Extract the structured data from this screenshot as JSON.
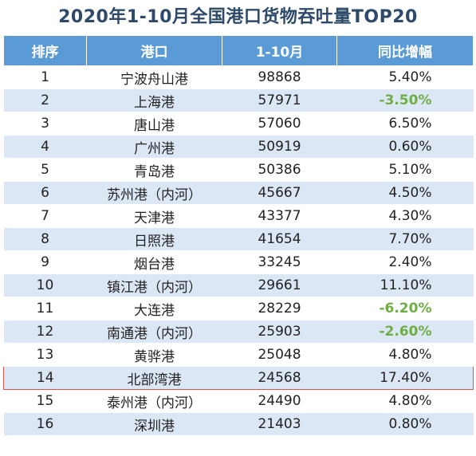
{
  "title": "2020年1-10月全国港口货物吞吐量TOP20",
  "columns": [
    "排序",
    "港口",
    "1-10月",
    "同比增幅"
  ],
  "rows": [
    {
      "rank": "1",
      "port": "宁波舟山港",
      "volume": "98868",
      "growth": "5.40%"
    },
    {
      "rank": "2",
      "port": "上海港",
      "volume": "57971",
      "growth": "-3.50%"
    },
    {
      "rank": "3",
      "port": "唐山港",
      "volume": "57060",
      "growth": "6.50%"
    },
    {
      "rank": "4",
      "port": "广州港",
      "volume": "50919",
      "growth": "0.60%"
    },
    {
      "rank": "5",
      "port": "青岛港",
      "volume": "50386",
      "growth": "5.10%"
    },
    {
      "rank": "6",
      "port": "苏州港（内河）",
      "volume": "45667",
      "growth": "4.50%"
    },
    {
      "rank": "7",
      "port": "天津港",
      "volume": "43377",
      "growth": "4.30%"
    },
    {
      "rank": "8",
      "port": "日照港",
      "volume": "41654",
      "growth": "7.70%"
    },
    {
      "rank": "9",
      "port": "烟台港",
      "volume": "33245",
      "growth": "2.40%"
    },
    {
      "rank": "10",
      "port": "镇江港（内河）",
      "volume": "29661",
      "growth": "11.10%"
    },
    {
      "rank": "11",
      "port": "大连港",
      "volume": "28229",
      "growth": "-6.20%"
    },
    {
      "rank": "12",
      "port": "南通港（内河）",
      "volume": "25903",
      "growth": "-2.60%"
    },
    {
      "rank": "13",
      "port": "黄骅港",
      "volume": "25048",
      "growth": "4.80%"
    },
    {
      "rank": "14",
      "port": "北部湾港",
      "volume": "24568",
      "growth": "17.40%"
    },
    {
      "rank": "15",
      "port": "泰州港（内河）",
      "volume": "24490",
      "growth": "4.80%"
    },
    {
      "rank": "16",
      "port": "深圳港",
      "volume": "21403",
      "growth": "0.80%"
    }
  ],
  "highlighted_rank": "14",
  "colors": {
    "header_bg": "#5b9bd5",
    "stripe": "#dce7f5",
    "negative": "#70ad47",
    "highlight_border": "#d9534f",
    "title": "#2e4a6b"
  }
}
